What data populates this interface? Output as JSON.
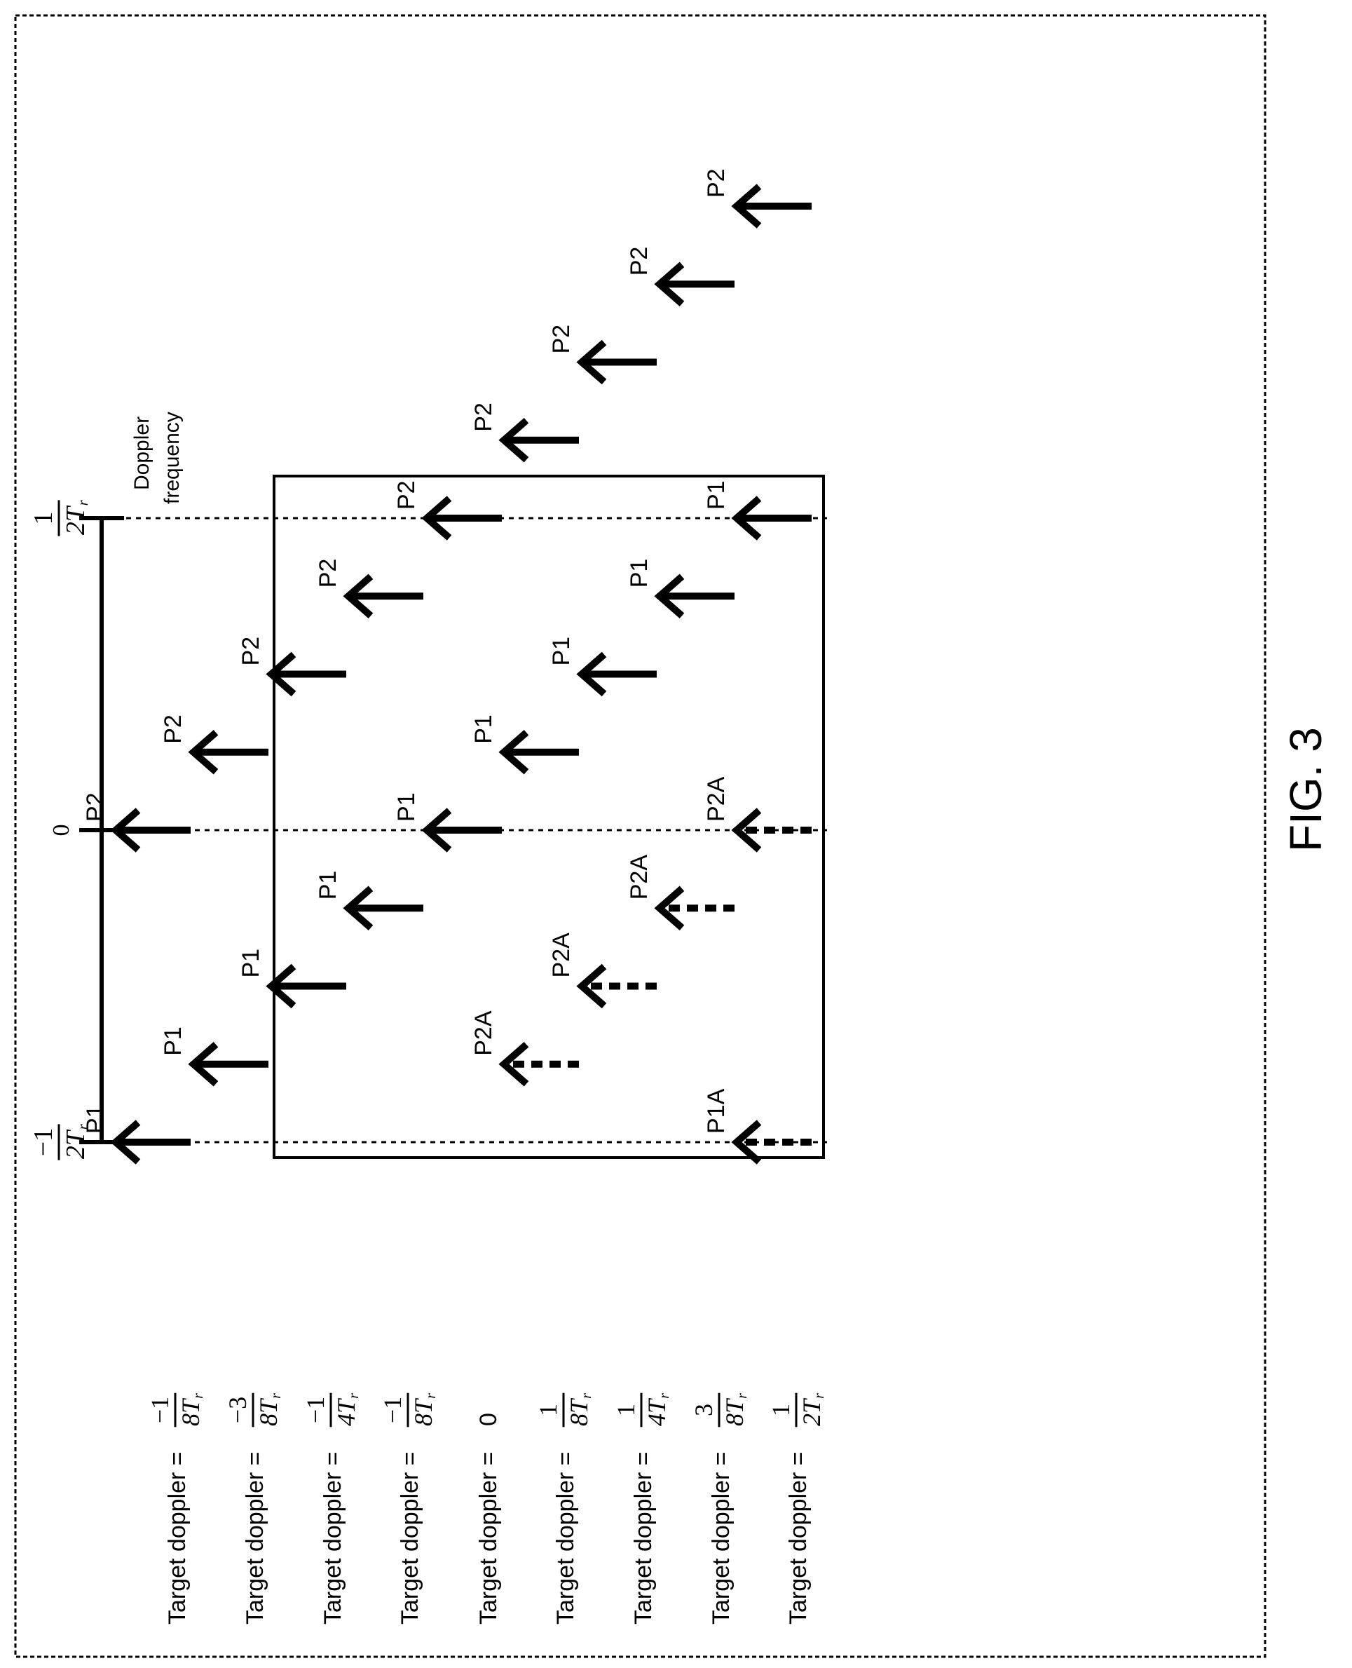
{
  "figure_label": "FIG. 3",
  "axis": {
    "label_line1": "Doppler",
    "label_line2": "frequency",
    "ticks": [
      {
        "id": "neg-half",
        "num": "−1",
        "den": "2T",
        "sub": "r",
        "value": -0.5
      },
      {
        "id": "zero",
        "text": "0",
        "value": 0
      },
      {
        "id": "pos-half",
        "num": "1",
        "den": "2T",
        "sub": "r",
        "value": 0.5
      }
    ]
  },
  "rows": [
    {
      "prefix": "Target doppler =",
      "num": "−1",
      "den": "8T",
      "sub": "r",
      "value": -0.5,
      "_frac": true
    },
    {
      "prefix": "Target doppler =",
      "num": "−3",
      "den": "8T",
      "sub": "r",
      "value": -0.375
    },
    {
      "prefix": "Target doppler =",
      "num": "−1",
      "den": "4T",
      "sub": "r",
      "value": -0.25
    },
    {
      "prefix": "Target doppler =",
      "num": "−1",
      "den": "8T",
      "sub": "r",
      "value": -0.125
    },
    {
      "prefix": "Target doppler =",
      "text": "0",
      "value": 0
    },
    {
      "prefix": "Target doppler =",
      "num": "1",
      "den": "8T",
      "sub": "r",
      "value": 0.125
    },
    {
      "prefix": "Target doppler =",
      "num": "1",
      "den": "4T",
      "sub": "r",
      "value": 0.25
    },
    {
      "prefix": "Target doppler =",
      "num": "3",
      "den": "8T",
      "sub": "r",
      "value": 0.375
    },
    {
      "prefix": "Target doppler =",
      "num": "1",
      "den": "2T",
      "sub": "r",
      "value": 0.5
    }
  ],
  "arrows": [
    {
      "row": 0,
      "pos": -0.5,
      "label": "P1",
      "style": "solid"
    },
    {
      "row": 0,
      "pos": 0,
      "label": "P2",
      "style": "solid"
    },
    {
      "row": 1,
      "pos": -0.375,
      "label": "P1",
      "style": "solid"
    },
    {
      "row": 1,
      "pos": 0.125,
      "label": "P2",
      "style": "solid"
    },
    {
      "row": 2,
      "pos": -0.25,
      "label": "P1",
      "style": "solid"
    },
    {
      "row": 2,
      "pos": 0.25,
      "label": "P2",
      "style": "solid"
    },
    {
      "row": 3,
      "pos": -0.125,
      "label": "P1",
      "style": "solid"
    },
    {
      "row": 3,
      "pos": 0.375,
      "label": "P2",
      "style": "solid"
    },
    {
      "row": 4,
      "pos": 0,
      "label": "P1",
      "style": "solid"
    },
    {
      "row": 4,
      "pos": 0.5,
      "label": "P2",
      "style": "solid"
    },
    {
      "row": 5,
      "pos": -0.375,
      "label": "P2A",
      "style": "dashed"
    },
    {
      "row": 5,
      "pos": 0.125,
      "label": "P1",
      "style": "solid"
    },
    {
      "row": 5,
      "pos": 0.625,
      "label": "P2",
      "style": "solid"
    },
    {
      "row": 6,
      "pos": -0.25,
      "label": "P2A",
      "style": "dashed"
    },
    {
      "row": 6,
      "pos": 0.25,
      "label": "P1",
      "style": "solid"
    },
    {
      "row": 6,
      "pos": 0.75,
      "label": "P2",
      "style": "solid"
    },
    {
      "row": 7,
      "pos": -0.125,
      "label": "P2A",
      "style": "dashed"
    },
    {
      "row": 7,
      "pos": 0.375,
      "label": "P1",
      "style": "solid"
    },
    {
      "row": 7,
      "pos": 0.875,
      "label": "P2",
      "style": "solid"
    },
    {
      "row": 8,
      "pos": -0.5,
      "label": "P1A",
      "style": "dashed"
    },
    {
      "row": 8,
      "pos": 0,
      "label": "P2A",
      "style": "dashed"
    },
    {
      "row": 8,
      "pos": 0.5,
      "label": "P1",
      "style": "solid"
    },
    {
      "row": 8,
      "pos": 1,
      "label": "P2",
      "style": "solid"
    }
  ],
  "highlight_box": {
    "rows_from": 2,
    "rows_to": 7,
    "pos_from": -0.5,
    "pos_to": 0.5
  }
}
